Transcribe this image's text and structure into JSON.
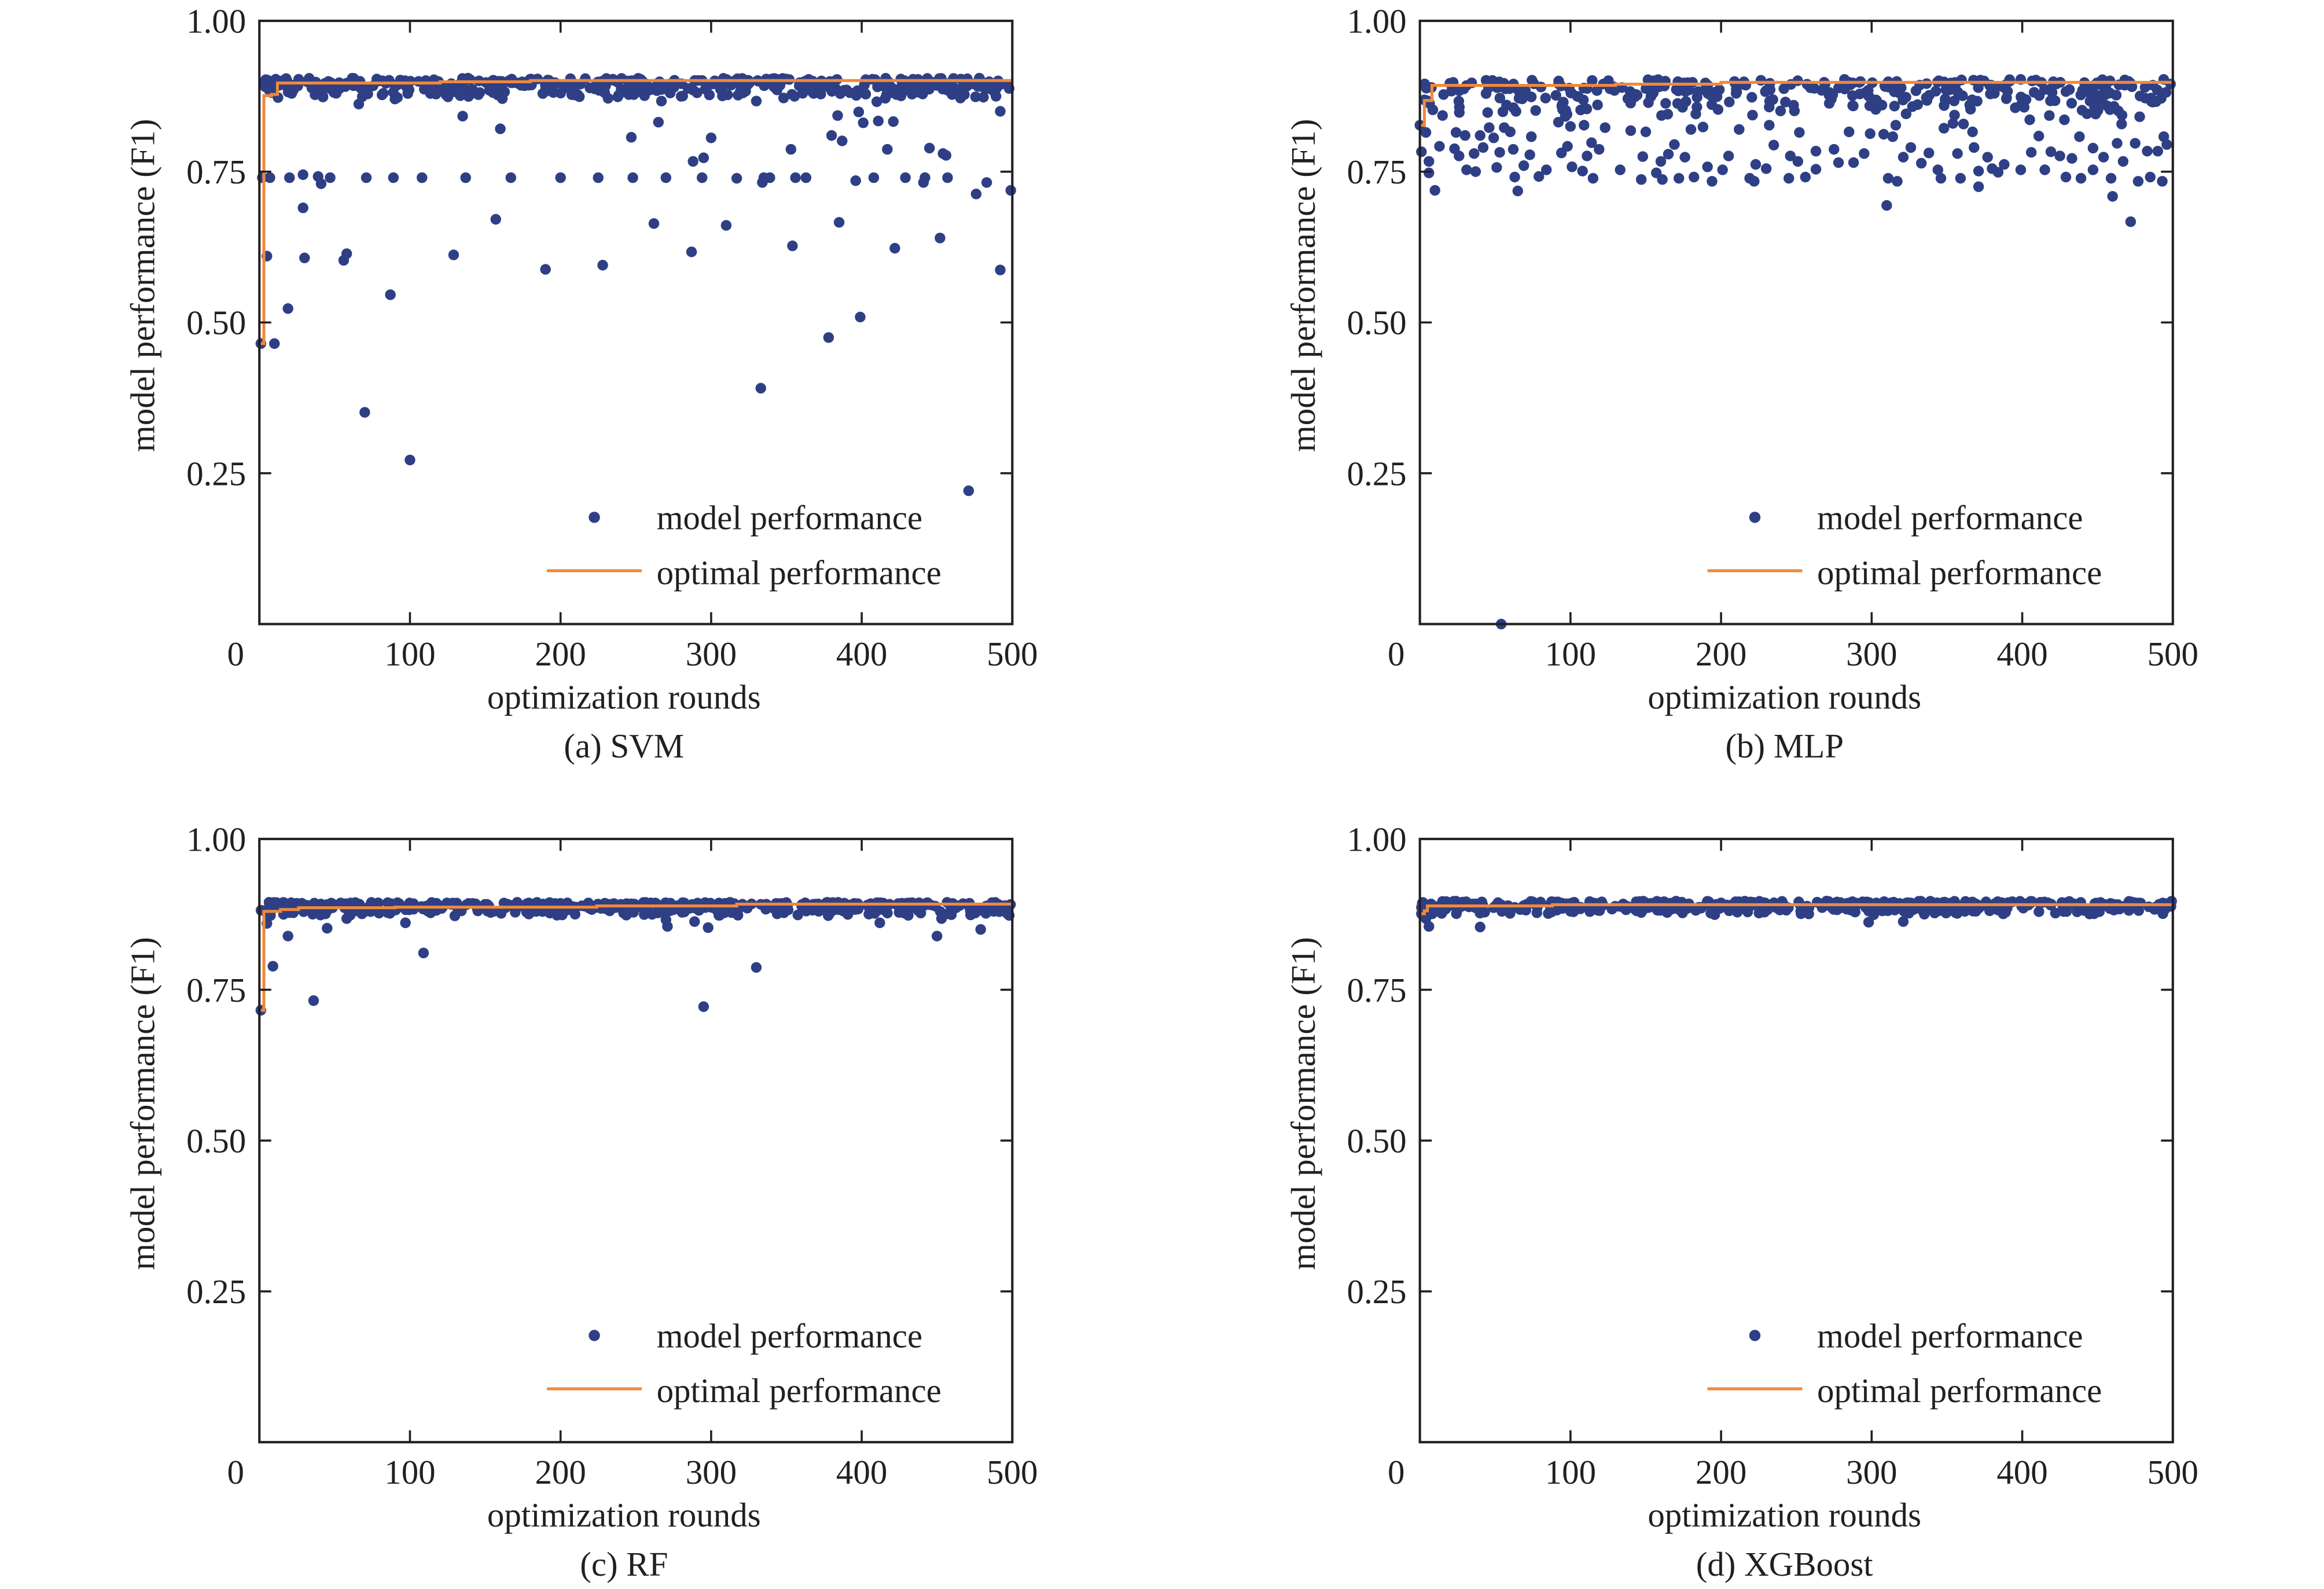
{
  "colors": {
    "points": "#2e3f85",
    "optimal_line": "#f0893a",
    "axes": "#231f20"
  },
  "chart_data": [
    {
      "type": "scatter",
      "caption": "(a) SVM",
      "xlabel": "optimization rounds",
      "ylabel": "model performance (F1)",
      "xlim": [
        0,
        500
      ],
      "ylim": [
        0,
        1
      ],
      "xticks": [
        "0",
        "100",
        "200",
        "300",
        "400",
        "500"
      ],
      "yticks": [
        "0.25",
        "0.50",
        "0.75",
        "1.00"
      ],
      "grid": false,
      "legend": {
        "position": "bottom-right",
        "entries": [
          "model performance",
          "optimal performance"
        ]
      },
      "main_cluster": {
        "x_range": [
          1,
          500
        ],
        "y_range": [
          0.87,
          0.905
        ],
        "approx_points": 420
      },
      "points": [
        [
          1,
          0.465
        ],
        [
          10,
          0.465
        ],
        [
          5,
          0.61
        ],
        [
          19,
          0.523
        ],
        [
          2,
          0.74
        ],
        [
          7,
          0.74
        ],
        [
          20,
          0.74
        ],
        [
          29,
          0.745
        ],
        [
          29,
          0.69
        ],
        [
          30,
          0.607
        ],
        [
          39,
          0.742
        ],
        [
          41,
          0.73
        ],
        [
          47,
          0.74
        ],
        [
          56,
          0.603
        ],
        [
          58,
          0.614
        ],
        [
          66,
          0.862
        ],
        [
          70,
          0.351
        ],
        [
          71,
          0.74
        ],
        [
          87,
          0.546
        ],
        [
          89,
          0.74
        ],
        [
          100,
          0.272
        ],
        [
          108,
          0.74
        ],
        [
          129,
          0.612
        ],
        [
          135,
          0.842
        ],
        [
          137,
          0.74
        ],
        [
          157,
          0.671
        ],
        [
          160,
          0.821
        ],
        [
          167,
          0.74
        ],
        [
          190,
          0.588
        ],
        [
          200,
          0.74
        ],
        [
          225,
          0.74
        ],
        [
          228,
          0.595
        ],
        [
          238,
          0.874
        ],
        [
          247,
          0.807
        ],
        [
          248,
          0.74
        ],
        [
          262,
          0.664
        ],
        [
          265,
          0.832
        ],
        [
          267,
          0.867
        ],
        [
          270,
          0.74
        ],
        [
          287,
          0.617
        ],
        [
          288,
          0.767
        ],
        [
          295,
          0.773
        ],
        [
          294,
          0.74
        ],
        [
          300,
          0.806
        ],
        [
          310,
          0.661
        ],
        [
          317,
          0.739
        ],
        [
          330,
          0.867
        ],
        [
          333,
          0.391
        ],
        [
          334,
          0.732
        ],
        [
          335,
          0.74
        ],
        [
          339,
          0.74
        ],
        [
          353,
          0.787
        ],
        [
          354,
          0.627
        ],
        [
          356,
          0.74
        ],
        [
          363,
          0.74
        ],
        [
          378,
          0.475
        ],
        [
          384,
          0.843
        ],
        [
          380,
          0.81
        ],
        [
          385,
          0.666
        ],
        [
          387,
          0.801
        ],
        [
          396,
          0.735
        ],
        [
          398,
          0.849
        ],
        [
          399,
          0.509
        ],
        [
          401,
          0.831
        ],
        [
          408,
          0.74
        ],
        [
          410,
          0.866
        ],
        [
          411,
          0.834
        ],
        [
          417,
          0.787
        ],
        [
          421,
          0.833
        ],
        [
          422,
          0.623
        ],
        [
          429,
          0.74
        ],
        [
          441,
          0.732
        ],
        [
          442,
          0.74
        ],
        [
          445,
          0.789
        ],
        [
          452,
          0.64
        ],
        [
          454,
          0.78
        ],
        [
          456,
          0.777
        ],
        [
          457,
          0.74
        ],
        [
          471,
          0.221
        ],
        [
          476,
          0.713
        ],
        [
          483,
          0.732
        ],
        [
          492,
          0.85
        ],
        [
          492,
          0.587
        ],
        [
          499,
          0.719
        ]
      ],
      "optimal": [
        [
          1,
          0.465
        ],
        [
          3,
          0.876
        ],
        [
          8,
          0.878
        ],
        [
          12,
          0.897
        ],
        [
          120,
          0.899
        ],
        [
          180,
          0.901
        ],
        [
          500,
          0.901
        ]
      ]
    },
    {
      "type": "scatter",
      "caption": "(b) MLP",
      "xlabel": "optimization rounds",
      "ylabel": "model performance (F1)",
      "xlim": [
        0,
        500
      ],
      "ylim": [
        0,
        1
      ],
      "xticks": [
        "0",
        "100",
        "200",
        "300",
        "400",
        "500"
      ],
      "yticks": [
        "0.25",
        "0.50",
        "0.75",
        "1.00"
      ],
      "grid": false,
      "legend": {
        "position": "bottom-right",
        "entries": [
          "model performance",
          "optimal performance"
        ]
      },
      "main_cluster": {
        "x_range": [
          1,
          500
        ],
        "y_range": [
          0.84,
          0.903
        ],
        "approx_points": 330
      },
      "points": [
        [
          0,
          0.827
        ],
        [
          1,
          0.783
        ],
        [
          3,
          0.869
        ],
        [
          4,
          0.815
        ],
        [
          6,
          0.748
        ],
        [
          6,
          0.767
        ],
        [
          10,
          0.719
        ],
        [
          13,
          0.792
        ],
        [
          24,
          0.815
        ],
        [
          26,
          0.776
        ],
        [
          23,
          0.788
        ],
        [
          31,
          0.753
        ],
        [
          30,
          0.81
        ],
        [
          36,
          0.78
        ],
        [
          37,
          0.75
        ],
        [
          40,
          0.81
        ],
        [
          42,
          0.79
        ],
        [
          45,
          0.848
        ],
        [
          46,
          0.823
        ],
        [
          49,
          0.806
        ],
        [
          51,
          0.757
        ],
        [
          53,
          0.782
        ],
        [
          54,
          0.0
        ],
        [
          56,
          0.823
        ],
        [
          60,
          0.816
        ],
        [
          62,
          0.787
        ],
        [
          63,
          0.741
        ],
        [
          65,
          0.718
        ],
        [
          69,
          0.76
        ],
        [
          74,
          0.808
        ],
        [
          73,
          0.778
        ],
        [
          79,
          0.742
        ],
        [
          84,
          0.753
        ],
        [
          92,
          0.832
        ],
        [
          94,
          0.781
        ],
        [
          100,
          0.825
        ],
        [
          98,
          0.792
        ],
        [
          101,
          0.758
        ],
        [
          108,
          0.751
        ],
        [
          109,
          0.827
        ],
        [
          111,
          0.776
        ],
        [
          115,
          0.739
        ],
        [
          114,
          0.798
        ],
        [
          119,
          0.787
        ],
        [
          123,
          0.823
        ],
        [
          133,
          0.753
        ],
        [
          140,
          0.818
        ],
        [
          147,
          0.737
        ],
        [
          148,
          0.775
        ],
        [
          150,
          0.816
        ],
        [
          157,
          0.748
        ],
        [
          160,
          0.767
        ],
        [
          161,
          0.737
        ],
        [
          165,
          0.779
        ],
        [
          169,
          0.795
        ],
        [
          172,
          0.739
        ],
        [
          176,
          0.774
        ],
        [
          180,
          0.82
        ],
        [
          182,
          0.741
        ],
        [
          188,
          0.824
        ],
        [
          191,
          0.758
        ],
        [
          194,
          0.734
        ],
        [
          201,
          0.753
        ],
        [
          205,
          0.776
        ],
        [
          198,
          0.853
        ],
        [
          212,
          0.82
        ],
        [
          219,
          0.739
        ],
        [
          222,
          0.734
        ],
        [
          223,
          0.762
        ],
        [
          230,
          0.755
        ],
        [
          232,
          0.827
        ],
        [
          235,
          0.794
        ],
        [
          245,
          0.739
        ],
        [
          246,
          0.776
        ],
        [
          251,
          0.767
        ],
        [
          252,
          0.815
        ],
        [
          256,
          0.741
        ],
        [
          263,
          0.784
        ],
        [
          263,
          0.754
        ],
        [
          275,
          0.787
        ],
        [
          278,
          0.765
        ],
        [
          285,
          0.816
        ],
        [
          288,
          0.765
        ],
        [
          295,
          0.78
        ],
        [
          299,
          0.813
        ],
        [
          308,
          0.812
        ],
        [
          310,
          0.694
        ],
        [
          311,
          0.739
        ],
        [
          314,
          0.808
        ],
        [
          316,
          0.827
        ],
        [
          317,
          0.734
        ],
        [
          321,
          0.774
        ],
        [
          326,
          0.79
        ],
        [
          333,
          0.764
        ],
        [
          338,
          0.781
        ],
        [
          344,
          0.753
        ],
        [
          346,
          0.739
        ],
        [
          348,
          0.822
        ],
        [
          354,
          0.83
        ],
        [
          357,
          0.78
        ],
        [
          359,
          0.739
        ],
        [
          361,
          0.829
        ],
        [
          367,
          0.816
        ],
        [
          368,
          0.79
        ],
        [
          371,
          0.751
        ],
        [
          371,
          0.725
        ],
        [
          377,
          0.774
        ],
        [
          380,
          0.755
        ],
        [
          384,
          0.749
        ],
        [
          388,
          0.762
        ],
        [
          399,
          0.753
        ],
        [
          405,
          0.836
        ],
        [
          406,
          0.782
        ],
        [
          411,
          0.809
        ],
        [
          415,
          0.753
        ],
        [
          418,
          0.843
        ],
        [
          419,
          0.783
        ],
        [
          425,
          0.776
        ],
        [
          428,
          0.836
        ],
        [
          429,
          0.741
        ],
        [
          433,
          0.772
        ],
        [
          438,
          0.808
        ],
        [
          439,
          0.739
        ],
        [
          443,
          0.846
        ],
        [
          447,
          0.753
        ],
        [
          447,
          0.789
        ],
        [
          454,
          0.774
        ],
        [
          459,
          0.739
        ],
        [
          460,
          0.709
        ],
        [
          463,
          0.797
        ],
        [
          466,
          0.829
        ],
        [
          467,
          0.767
        ],
        [
          472,
          0.667
        ],
        [
          475,
          0.797
        ],
        [
          477,
          0.734
        ],
        [
          478,
          0.841
        ],
        [
          483,
          0.784
        ],
        [
          485,
          0.741
        ],
        [
          490,
          0.784
        ],
        [
          493,
          0.734
        ],
        [
          494,
          0.808
        ],
        [
          496,
          0.795
        ]
      ],
      "optimal": [
        [
          0,
          0.827
        ],
        [
          2,
          0.827
        ],
        [
          3,
          0.868
        ],
        [
          6,
          0.868
        ],
        [
          8,
          0.893
        ],
        [
          130,
          0.895
        ],
        [
          200,
          0.898
        ],
        [
          500,
          0.898
        ]
      ]
    },
    {
      "type": "scatter",
      "caption": "(c) RF",
      "xlabel": "optimization rounds",
      "ylabel": "model performance (F1)",
      "xlim": [
        0,
        500
      ],
      "ylim": [
        0,
        1
      ],
      "xticks": [
        "0",
        "100",
        "200",
        "300",
        "400",
        "500"
      ],
      "yticks": [
        "0.25",
        "0.50",
        "0.75",
        "1.00"
      ],
      "grid": false,
      "legend": {
        "position": "bottom-right",
        "entries": [
          "model performance",
          "optimal performance"
        ]
      },
      "main_cluster": {
        "x_range": [
          1,
          500
        ],
        "y_range": [
          0.872,
          0.895
        ],
        "approx_points": 460
      },
      "points": [
        [
          1,
          0.716
        ],
        [
          9,
          0.789
        ],
        [
          19,
          0.839
        ],
        [
          36,
          0.732
        ],
        [
          45,
          0.852
        ],
        [
          5,
          0.86
        ],
        [
          58,
          0.868
        ],
        [
          97,
          0.861
        ],
        [
          109,
          0.811
        ],
        [
          270,
          0.866
        ],
        [
          271,
          0.855
        ],
        [
          289,
          0.863
        ],
        [
          295,
          0.722
        ],
        [
          298,
          0.853
        ],
        [
          330,
          0.787
        ],
        [
          412,
          0.861
        ],
        [
          450,
          0.839
        ],
        [
          453,
          0.868
        ],
        [
          479,
          0.85
        ]
      ],
      "optimal": [
        [
          1,
          0.716
        ],
        [
          3,
          0.88
        ],
        [
          14,
          0.883
        ],
        [
          26,
          0.886
        ],
        [
          90,
          0.887
        ],
        [
          224,
          0.889
        ],
        [
          317,
          0.892
        ],
        [
          500,
          0.892
        ]
      ]
    },
    {
      "type": "scatter",
      "caption": "(d) XGBoost",
      "xlabel": "optimization rounds",
      "ylabel": "model performance (F1)",
      "xlim": [
        0,
        500
      ],
      "ylim": [
        0,
        1
      ],
      "xticks": [
        "0",
        "100",
        "200",
        "300",
        "400",
        "500"
      ],
      "yticks": [
        "0.25",
        "0.50",
        "0.75",
        "1.00"
      ],
      "grid": false,
      "legend": {
        "position": "bottom-right",
        "entries": [
          "model performance",
          "optimal performance"
        ]
      },
      "main_cluster": {
        "x_range": [
          1,
          500
        ],
        "y_range": [
          0.874,
          0.897
        ],
        "approx_points": 480
      },
      "points": [
        [
          1,
          0.876
        ],
        [
          4,
          0.868
        ],
        [
          6,
          0.855
        ],
        [
          40,
          0.854
        ],
        [
          298,
          0.862
        ],
        [
          321,
          0.863
        ]
      ],
      "optimal": [
        [
          1,
          0.876
        ],
        [
          3,
          0.881
        ],
        [
          5,
          0.889
        ],
        [
          88,
          0.891
        ],
        [
          500,
          0.891
        ]
      ]
    }
  ]
}
